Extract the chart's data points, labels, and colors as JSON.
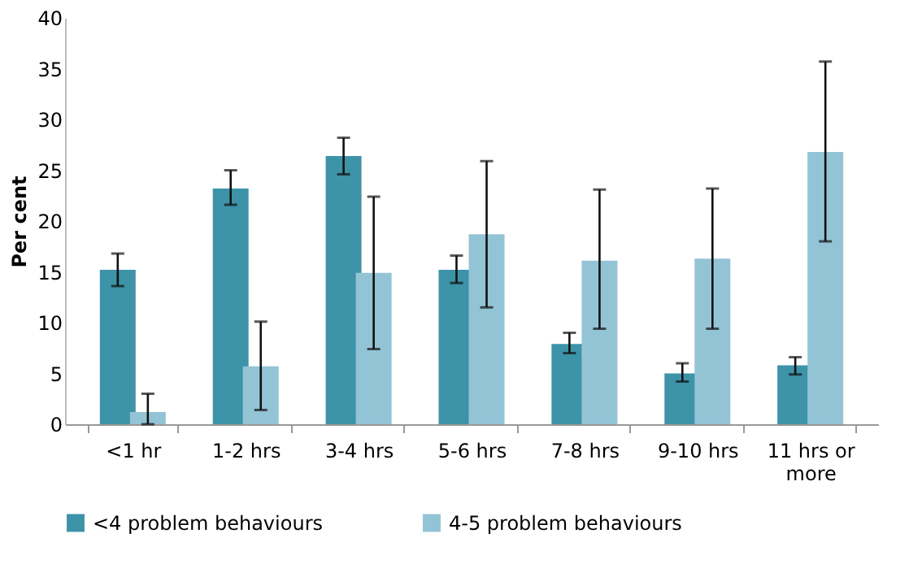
{
  "chart_data": {
    "type": "bar",
    "ylabel": "Per cent",
    "categories": [
      "<1 hr",
      "1-2 hrs",
      "3-4 hrs",
      "5-6 hrs",
      "7-8 hrs",
      "9-10 hrs",
      "11 hrs or more"
    ],
    "series": [
      {
        "name": "<4 problem behaviours",
        "color": "#3d93a8",
        "values": [
          15.2,
          23.2,
          26.4,
          15.2,
          7.9,
          5.0,
          5.8
        ],
        "errors": [
          [
            13.6,
            16.8
          ],
          [
            21.6,
            25.0
          ],
          [
            24.6,
            28.2
          ],
          [
            13.9,
            16.6
          ],
          [
            7.0,
            9.0
          ],
          [
            4.2,
            6.0
          ],
          [
            4.9,
            6.6
          ]
        ]
      },
      {
        "name": "4-5 problem behaviours",
        "color": "#93c4d6",
        "values": [
          1.2,
          5.7,
          14.9,
          18.7,
          16.1,
          16.3,
          26.8
        ],
        "errors": [
          [
            0,
            3.0
          ],
          [
            1.4,
            10.1
          ],
          [
            7.4,
            22.4
          ],
          [
            11.5,
            25.9
          ],
          [
            9.4,
            23.1
          ],
          [
            9.4,
            23.2
          ],
          [
            18.0,
            35.7
          ]
        ]
      }
    ],
    "ylim": [
      0,
      40
    ],
    "yticks": [
      0,
      5,
      10,
      15,
      20,
      25,
      30,
      35,
      40
    ],
    "grid": false,
    "legend": "bottom"
  }
}
